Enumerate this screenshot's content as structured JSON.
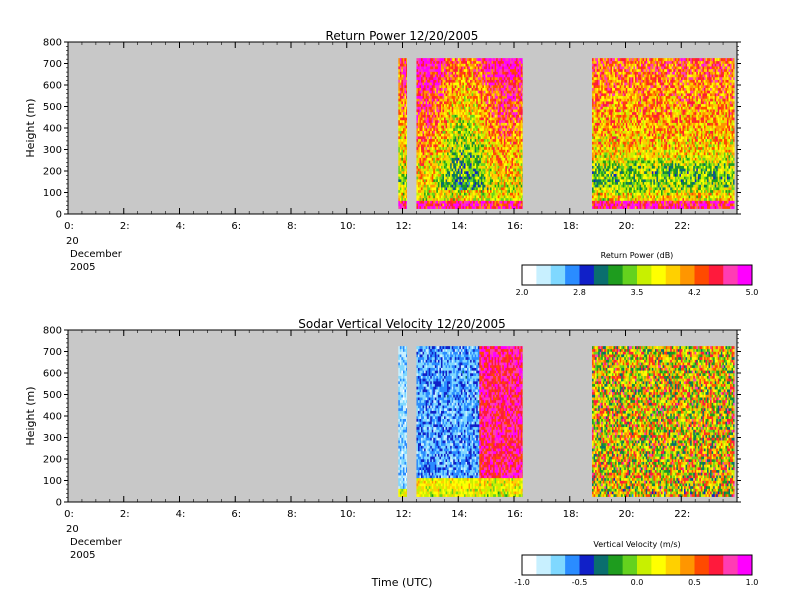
{
  "chart_data": [
    {
      "type": "heatmap",
      "title": "Return Power 12/20/2005",
      "ylabel": "Height (m)",
      "xlabel": "",
      "y_ticks": [
        0,
        100,
        200,
        300,
        400,
        500,
        600,
        700,
        800
      ],
      "ylim": [
        0,
        800
      ],
      "x_ticks": [
        "0:",
        "2:",
        "4:",
        "6:",
        "8:",
        "10:",
        "12:",
        "14:",
        "16:",
        "18:",
        "20:",
        "22:"
      ],
      "xlim_hours": [
        0,
        24
      ],
      "date_label": [
        "20",
        "December",
        "2005"
      ],
      "data_height_range": [
        25,
        720
      ],
      "background_color": "#c8c8c8",
      "data_segments": [
        {
          "start_hour": 11.85,
          "end_hour": 12.15
        },
        {
          "start_hour": 12.5,
          "end_hour": 16.3
        },
        {
          "start_hour": 18.8,
          "end_hour": 23.9
        }
      ],
      "colorbar": {
        "label": "Return Power (dB)",
        "min": 2.0,
        "max": 5.0,
        "tick_labels": [
          "2.0",
          "2.8",
          "3.5",
          "4.2",
          "5.0"
        ]
      }
    },
    {
      "type": "heatmap",
      "title": "Sodar Vertical Velocity 12/20/2005",
      "ylabel": "Height (m)",
      "xlabel": "Time (UTC)",
      "y_ticks": [
        0,
        100,
        200,
        300,
        400,
        500,
        600,
        700,
        800
      ],
      "ylim": [
        0,
        800
      ],
      "x_ticks": [
        "0:",
        "2:",
        "4:",
        "6:",
        "8:",
        "10:",
        "12:",
        "14:",
        "16:",
        "18:",
        "20:",
        "22:"
      ],
      "xlim_hours": [
        0,
        24
      ],
      "date_label": [
        "20",
        "December",
        "2005"
      ],
      "data_height_range": [
        25,
        720
      ],
      "background_color": "#c8c8c8",
      "data_segments": [
        {
          "start_hour": 11.85,
          "end_hour": 12.15
        },
        {
          "start_hour": 12.5,
          "end_hour": 16.3
        },
        {
          "start_hour": 18.8,
          "end_hour": 23.9
        }
      ],
      "colorbar": {
        "label": "Vertical Velocity (m/s)",
        "min": -1.0,
        "max": 1.0,
        "tick_labels": [
          "-1.0",
          "-0.5",
          "0.0",
          "0.5",
          "1.0"
        ]
      }
    }
  ],
  "colorbar_colors": [
    "#ffffff",
    "#c8f0ff",
    "#7fd8ff",
    "#2a8cff",
    "#1020c8",
    "#0a6e6e",
    "#1e9c1e",
    "#64d21e",
    "#c8f000",
    "#ffff00",
    "#ffd000",
    "#ff9600",
    "#ff4a00",
    "#ff1a3c",
    "#ff3cb4",
    "#ff00ff"
  ]
}
